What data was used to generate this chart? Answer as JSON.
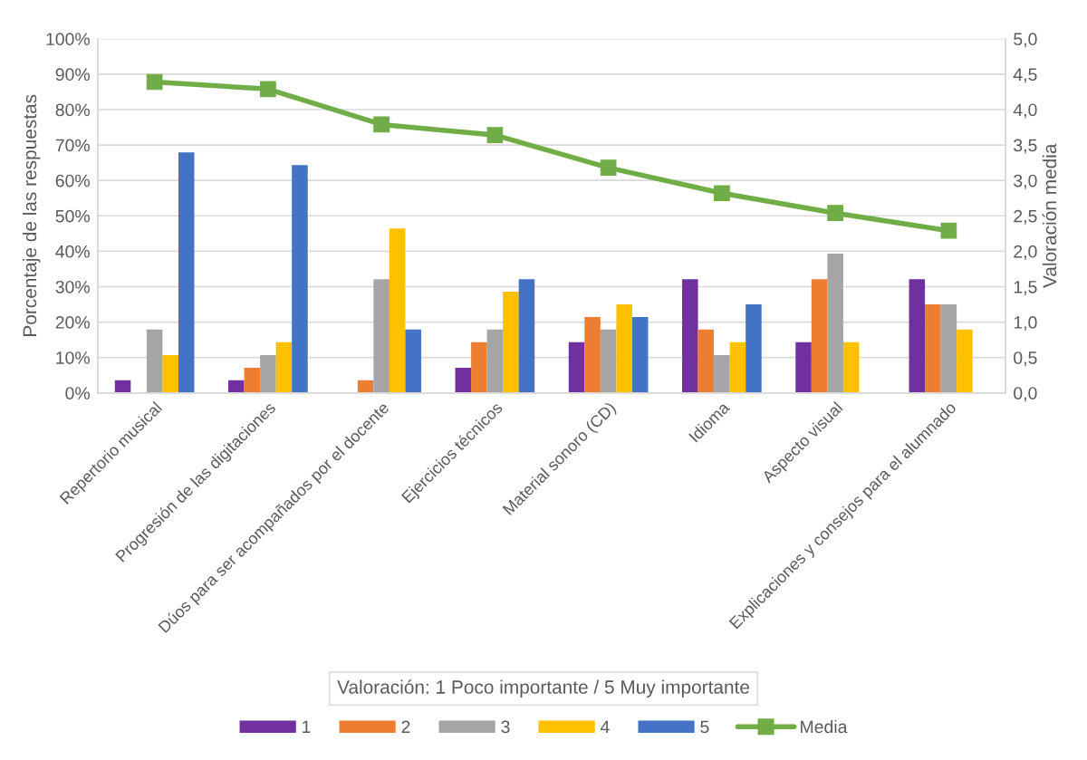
{
  "chart_data": {
    "type": "bar",
    "ylabel": "Porcentaje de las respuestas",
    "y2label": "Valoración media",
    "legend_title": "Valoración: 1 Poco importante / 5 Muy importante",
    "categories": [
      "Repertorio musical",
      "Progresión de las digitaciones",
      "Dúos para ser acompañados por el docente",
      "Ejercicios técnicos",
      "Material sonoro (CD)",
      "Idioma",
      "Aspecto visual",
      "Explicaciones y consejos para el alumnado"
    ],
    "series": [
      {
        "name": "1",
        "color": "#7030a0",
        "values": [
          3.6,
          3.6,
          0,
          7.1,
          14.3,
          32.1,
          14.3,
          32.1
        ]
      },
      {
        "name": "2",
        "color": "#ed7d31",
        "values": [
          0,
          7.1,
          3.6,
          14.3,
          21.4,
          17.9,
          32.1,
          25.0
        ]
      },
      {
        "name": "3",
        "color": "#a5a5a5",
        "values": [
          17.9,
          10.7,
          32.1,
          17.9,
          17.9,
          10.7,
          39.3,
          25.0
        ]
      },
      {
        "name": "4",
        "color": "#ffc000",
        "values": [
          10.7,
          14.3,
          46.4,
          28.6,
          25.0,
          14.3,
          14.3,
          17.9
        ]
      },
      {
        "name": "5",
        "color": "#4472c4",
        "values": [
          67.9,
          64.3,
          17.9,
          32.1,
          21.4,
          25.0,
          0,
          0
        ]
      },
      {
        "name": "Media",
        "type": "line",
        "axis": "y2",
        "color": "#70ad47",
        "marker": "square",
        "line_style": "solid",
        "values": [
          4.39,
          4.29,
          3.79,
          3.64,
          3.18,
          2.82,
          2.54,
          2.29
        ]
      }
    ],
    "ylim": [
      0,
      100
    ],
    "yticks": [
      {
        "value": 0,
        "label": "0%"
      },
      {
        "value": 10,
        "label": "10%"
      },
      {
        "value": 20,
        "label": "20%"
      },
      {
        "value": 30,
        "label": "30%"
      },
      {
        "value": 40,
        "label": "40%"
      },
      {
        "value": 50,
        "label": "50%"
      },
      {
        "value": 60,
        "label": "60%"
      },
      {
        "value": 70,
        "label": "70%"
      },
      {
        "value": 80,
        "label": "80%"
      },
      {
        "value": 90,
        "label": "90%"
      },
      {
        "value": 100,
        "label": "100%"
      }
    ],
    "y2lim": [
      0,
      5
    ],
    "y2ticks": [
      {
        "value": 0,
        "label": "0,0"
      },
      {
        "value": 0.5,
        "label": "0,5"
      },
      {
        "value": 1,
        "label": "1,0"
      },
      {
        "value": 1.5,
        "label": "1,5"
      },
      {
        "value": 2,
        "label": "2,0"
      },
      {
        "value": 2.5,
        "label": "2,5"
      },
      {
        "value": 3,
        "label": "3,0"
      },
      {
        "value": 3.5,
        "label": "3,5"
      },
      {
        "value": 4,
        "label": "4,0"
      },
      {
        "value": 4.5,
        "label": "4,5"
      },
      {
        "value": 5,
        "label": "5,0"
      }
    ],
    "grid": "y",
    "legend": "bottom"
  }
}
